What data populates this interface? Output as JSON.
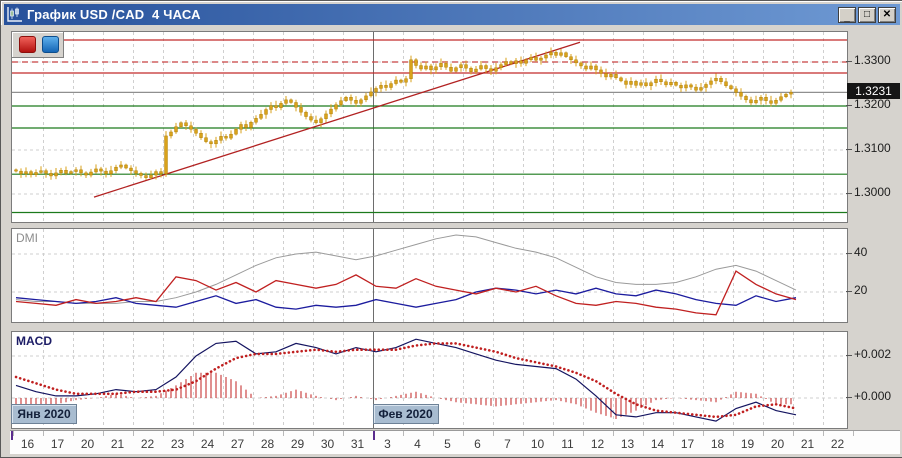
{
  "window": {
    "title": "График USD /CAD  4 ЧАСА",
    "controls": {
      "minimize": "_",
      "maximize": "□",
      "close": "✕"
    }
  },
  "legend_buttons": {
    "red_color": "#c41511",
    "blue_color": "#1b74c4"
  },
  "panels": {
    "price": {
      "current_price_label": "1.3231",
      "axis_labels": [
        {
          "text": "1.3300",
          "price": 1.33
        },
        {
          "text": "1.3200",
          "price": 1.32
        },
        {
          "text": "1.3100",
          "price": 1.31
        },
        {
          "text": "1.3000",
          "price": 1.3
        }
      ]
    },
    "dmi": {
      "label": "DMI",
      "axis_labels": [
        {
          "text": "40",
          "value": 40
        },
        {
          "text": "20",
          "value": 20
        }
      ]
    },
    "macd": {
      "label": "MACD",
      "axis_labels": [
        {
          "text": "+0.002",
          "value": 0.002
        },
        {
          "text": "+0.000",
          "value": 0.0
        }
      ]
    }
  },
  "time_axis": {
    "day_labels": [
      "16",
      "17",
      "20",
      "21",
      "22",
      "23",
      "24",
      "27",
      "28",
      "29",
      "30",
      "31",
      "3",
      "4",
      "5",
      "6",
      "7",
      "10",
      "11",
      "12",
      "13",
      "14",
      "17",
      "18",
      "19",
      "20",
      "21",
      "22"
    ],
    "months": [
      {
        "label": "Янв 2020",
        "day_index": 0
      },
      {
        "label": "Фев 2020",
        "day_index": 12
      }
    ]
  },
  "chart_data": {
    "type": "candlestick+indicators",
    "symbol": "USD/CAD",
    "timeframe": "4H",
    "candles_per_day": 6,
    "price_axis_range": [
      1.2939,
      1.3368
    ],
    "grid_prices": [
      1.33,
      1.32,
      1.31,
      1.3
    ],
    "first_open": 1.3055,
    "closes": [
      1.3052,
      1.3046,
      1.3051,
      1.3044,
      1.3049,
      1.3053,
      1.3047,
      1.3041,
      1.3048,
      1.3054,
      1.3047,
      1.3051,
      1.3055,
      1.3048,
      1.3043,
      1.305,
      1.3057,
      1.3052,
      1.3046,
      1.3053,
      1.3061,
      1.3066,
      1.3059,
      1.3053,
      1.3047,
      1.3042,
      1.3037,
      1.3043,
      1.3051,
      1.3046,
      1.3132,
      1.3141,
      1.3153,
      1.3162,
      1.3155,
      1.3147,
      1.3138,
      1.3128,
      1.3119,
      1.3114,
      1.3122,
      1.3131,
      1.3127,
      1.3136,
      1.3147,
      1.3158,
      1.3151,
      1.3163,
      1.3172,
      1.3181,
      1.3192,
      1.3201,
      1.3196,
      1.3206,
      1.3214,
      1.3208,
      1.3197,
      1.3186,
      1.3176,
      1.3168,
      1.3162,
      1.3171,
      1.3182,
      1.3193,
      1.3203,
      1.3212,
      1.322,
      1.3213,
      1.3206,
      1.3214,
      1.3223,
      1.3232,
      1.324,
      1.3247,
      1.3242,
      1.3251,
      1.3259,
      1.3254,
      1.3262,
      1.3305,
      1.3292,
      1.3284,
      1.3291,
      1.3282,
      1.3289,
      1.3297,
      1.3288,
      1.3279,
      1.3287,
      1.3294,
      1.3286,
      1.3278,
      1.3284,
      1.3292,
      1.3285,
      1.3279,
      1.3287,
      1.3294,
      1.3301,
      1.3296,
      1.3303,
      1.3297,
      1.3305,
      1.3311,
      1.3304,
      1.3309,
      1.3316,
      1.3322,
      1.3315,
      1.3321,
      1.3312,
      1.3305,
      1.3298,
      1.3291,
      1.3284,
      1.3291,
      1.3282,
      1.3274,
      1.3266,
      1.3272,
      1.3264,
      1.3257,
      1.3249,
      1.3256,
      1.3247,
      1.3253,
      1.3246,
      1.3253,
      1.3261,
      1.3255,
      1.3248,
      1.3254,
      1.3247,
      1.3241,
      1.3248,
      1.3243,
      1.3236,
      1.3242,
      1.3249,
      1.3257,
      1.3263,
      1.3255,
      1.3246,
      1.3239,
      1.3231,
      1.3222,
      1.3214,
      1.3207,
      1.3213,
      1.322,
      1.3212,
      1.3206,
      1.3213,
      1.3221,
      1.3227,
      1.3231
    ],
    "price_lines": [
      {
        "price": 1.335,
        "color": "#c22a2a",
        "style": "solid"
      },
      {
        "price": 1.33,
        "color": "#c84040",
        "style": "dashed"
      },
      {
        "price": 1.3275,
        "color": "#c22a2a",
        "style": "solid"
      },
      {
        "price": 1.3231,
        "color": "#8f8f8f",
        "style": "solid"
      },
      {
        "price": 1.32,
        "color": "#1c7a1c",
        "style": "solid"
      },
      {
        "price": 1.315,
        "color": "#1c7a1c",
        "style": "solid"
      },
      {
        "price": 1.3045,
        "color": "#1c7a1c",
        "style": "solid"
      },
      {
        "price": 1.2958,
        "color": "#1c7a1c",
        "style": "solid"
      }
    ],
    "trendline": {
      "candle1": 15.6,
      "price1": 1.2993,
      "candle2": 112.8,
      "price2": 1.3345,
      "color": "#b22222"
    },
    "sample_step_candles": 4,
    "dmi": {
      "adx": [
        16,
        15,
        15,
        14,
        14,
        14,
        15,
        15,
        17,
        20,
        24,
        29,
        34,
        38,
        40,
        41,
        39,
        37,
        39,
        42,
        45,
        48,
        50,
        49,
        46,
        43,
        41,
        38,
        33,
        28,
        25,
        24,
        24,
        25,
        28,
        32,
        34,
        31,
        26,
        21
      ],
      "plus_di": [
        15,
        14,
        13,
        16,
        14,
        15,
        17,
        15,
        28,
        26,
        21,
        25,
        20,
        26,
        24,
        22,
        24,
        29,
        23,
        22,
        27,
        23,
        21,
        19,
        22,
        20,
        23,
        18,
        14,
        13,
        15,
        14,
        12,
        11,
        9,
        8,
        31,
        24,
        19,
        16
      ],
      "minus_di": [
        17,
        16,
        15,
        14,
        15,
        17,
        14,
        13,
        12,
        15,
        18,
        14,
        16,
        12,
        11,
        13,
        12,
        13,
        16,
        14,
        12,
        14,
        16,
        20,
        22,
        21,
        19,
        21,
        19,
        22,
        19,
        18,
        21,
        19,
        16,
        14,
        13,
        18,
        15,
        17
      ],
      "grid_values": [
        40,
        20
      ]
    },
    "macd": {
      "macd": [
        0.0006,
        0.0003,
        0.0001,
        0.0001,
        0.0002,
        0.0004,
        0.0003,
        0.0004,
        0.001,
        0.002,
        0.0026,
        0.0027,
        0.0021,
        0.0022,
        0.0026,
        0.0024,
        0.0021,
        0.0024,
        0.0022,
        0.0024,
        0.0028,
        0.0026,
        0.0024,
        0.0021,
        0.0018,
        0.0016,
        0.0015,
        0.0014,
        0.0009,
        0.0001,
        -0.0008,
        -0.0009,
        -0.0007,
        -0.0007,
        -0.0009,
        -0.0011,
        -0.0005,
        -0.0002,
        -0.0006,
        -0.0008
      ],
      "signal": [
        0.001,
        0.0007,
        0.0004,
        0.0002,
        0.0002,
        0.0002,
        0.0003,
        0.0003,
        0.0004,
        0.0008,
        0.0014,
        0.0019,
        0.0021,
        0.0021,
        0.0022,
        0.0023,
        0.0022,
        0.0023,
        0.0023,
        0.0023,
        0.0025,
        0.0026,
        0.0026,
        0.0024,
        0.0022,
        0.0019,
        0.0017,
        0.0015,
        0.0012,
        0.0008,
        0.0002,
        -0.0003,
        -0.0006,
        -0.0007,
        -0.0008,
        -0.0009,
        -0.0008,
        -0.0004,
        -0.0003,
        -0.0005
      ],
      "grid_values": [
        0.002,
        0.0
      ]
    },
    "colors": {
      "candle": "#d9a21b",
      "candle_border": "#a87800",
      "adx": "#9a9a9a",
      "plus_di": "#c02020",
      "minus_di": "#1c1c9e",
      "macd_line": "#141460",
      "signal_line": "#c02020",
      "histogram": "#c02020"
    }
  }
}
